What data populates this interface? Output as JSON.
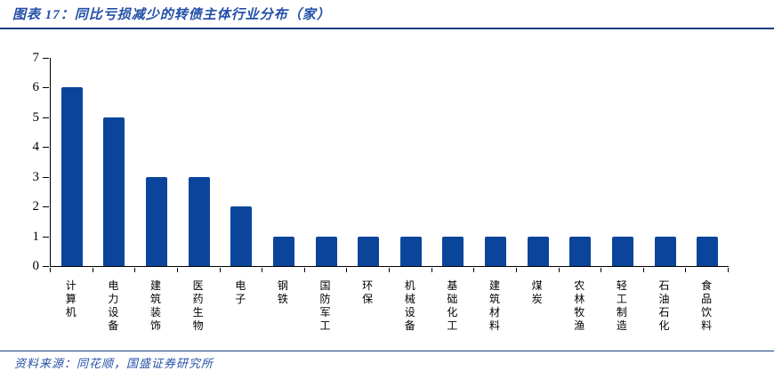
{
  "header": {
    "title": "图表 17：同比亏损减少的转债主体行业分布（家）"
  },
  "footer": {
    "source": "资料来源：同花顺，国盛证券研究所"
  },
  "colors": {
    "bar": "#0B459B",
    "accent": "#2350A8",
    "rule": "#16407E",
    "axis": "#000000"
  },
  "chart_data": {
    "type": "bar",
    "title": "同比亏损减少的转债主体行业分布（家）",
    "categories": [
      "计算机",
      "电力设备",
      "建筑装饰",
      "医药生物",
      "电子",
      "钢铁",
      "国防军工",
      "环保",
      "机械设备",
      "基础化工",
      "建筑材料",
      "煤炭",
      "农林牧渔",
      "轻工制造",
      "石油石化",
      "食品饮料"
    ],
    "values": [
      6,
      5,
      3,
      3,
      2,
      1,
      1,
      1,
      1,
      1,
      1,
      1,
      1,
      1,
      1,
      1
    ],
    "xlabel": "",
    "ylabel": "",
    "ylim": [
      0,
      7
    ],
    "yticks": [
      0,
      1,
      2,
      3,
      4,
      5,
      6,
      7
    ],
    "grid": false,
    "legend_position": "none",
    "bar_color": "#0B459B"
  }
}
